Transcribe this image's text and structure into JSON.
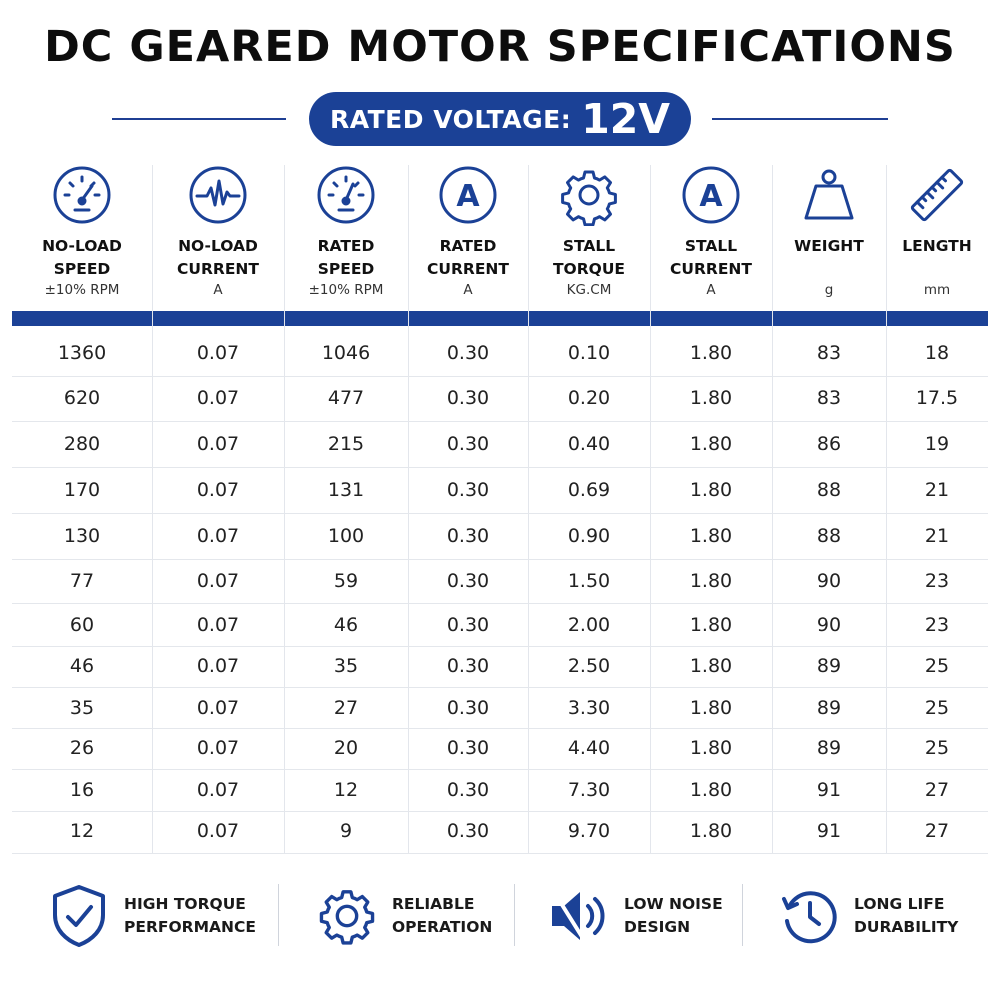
{
  "title": "DC GEARED MOTOR SPECIFICATIONS",
  "voltage": {
    "label": "RATED VOLTAGE:",
    "value": "12V"
  },
  "colors": {
    "brand_blue": "#1b4196",
    "text": "#111111"
  },
  "columns": [
    {
      "icon": "speedometer-icon",
      "line1": "NO-LOAD",
      "line2": "SPEED",
      "unit": "±10% RPM"
    },
    {
      "icon": "waveform-icon",
      "line1": "NO-LOAD",
      "line2": "CURRENT",
      "unit": "A"
    },
    {
      "icon": "speedometer-icon",
      "line1": "RATED",
      "line2": "SPEED",
      "unit": "±10% RPM"
    },
    {
      "icon": "ampere-icon",
      "line1": "RATED",
      "line2": "CURRENT",
      "unit": "A"
    },
    {
      "icon": "gear-icon",
      "line1": "STALL",
      "line2": "TORQUE",
      "unit": "KG.CM"
    },
    {
      "icon": "ampere-icon",
      "line1": "STALL",
      "line2": "CURRENT",
      "unit": "A"
    },
    {
      "icon": "weight-icon",
      "line1": "WEIGHT",
      "line2": "",
      "unit": "g"
    },
    {
      "icon": "ruler-icon",
      "line1": "LENGTH",
      "line2": "",
      "unit": "mm"
    }
  ],
  "rows": [
    [
      "1360",
      "0.07",
      "1046",
      "0.30",
      "0.10",
      "1.80",
      "83",
      "18"
    ],
    [
      "620",
      "0.07",
      "477",
      "0.30",
      "0.20",
      "1.80",
      "83",
      "17.5"
    ],
    [
      "280",
      "0.07",
      "215",
      "0.30",
      "0.40",
      "1.80",
      "86",
      "19"
    ],
    [
      "170",
      "0.07",
      "131",
      "0.30",
      "0.69",
      "1.80",
      "88",
      "21"
    ],
    [
      "130",
      "0.07",
      "100",
      "0.30",
      "0.90",
      "1.80",
      "88",
      "21"
    ],
    [
      "77",
      "0.07",
      "59",
      "0.30",
      "1.50",
      "1.80",
      "90",
      "23"
    ],
    [
      "60",
      "0.07",
      "46",
      "0.30",
      "2.00",
      "1.80",
      "90",
      "23"
    ],
    [
      "46",
      "0.07",
      "35",
      "0.30",
      "2.50",
      "1.80",
      "89",
      "25"
    ],
    [
      "35",
      "0.07",
      "27",
      "0.30",
      "3.30",
      "1.80",
      "89",
      "25"
    ],
    [
      "26",
      "0.07",
      "20",
      "0.30",
      "4.40",
      "1.80",
      "89",
      "25"
    ],
    [
      "16",
      "0.07",
      "12",
      "0.30",
      "7.30",
      "1.80",
      "91",
      "27"
    ],
    [
      "12",
      "0.07",
      "9",
      "0.30",
      "9.70",
      "1.80",
      "91",
      "27"
    ]
  ],
  "features": [
    {
      "icon": "shield-check-icon",
      "line1": "HIGH TORQUE",
      "line2": "PERFORMANCE"
    },
    {
      "icon": "gear-icon",
      "line1": "RELIABLE",
      "line2": "OPERATION"
    },
    {
      "icon": "muted-speaker-icon",
      "line1": "LOW NOISE",
      "line2": "DESIGN"
    },
    {
      "icon": "history-clock-icon",
      "line1": "LONG LIFE",
      "line2": "DURABILITY"
    }
  ]
}
